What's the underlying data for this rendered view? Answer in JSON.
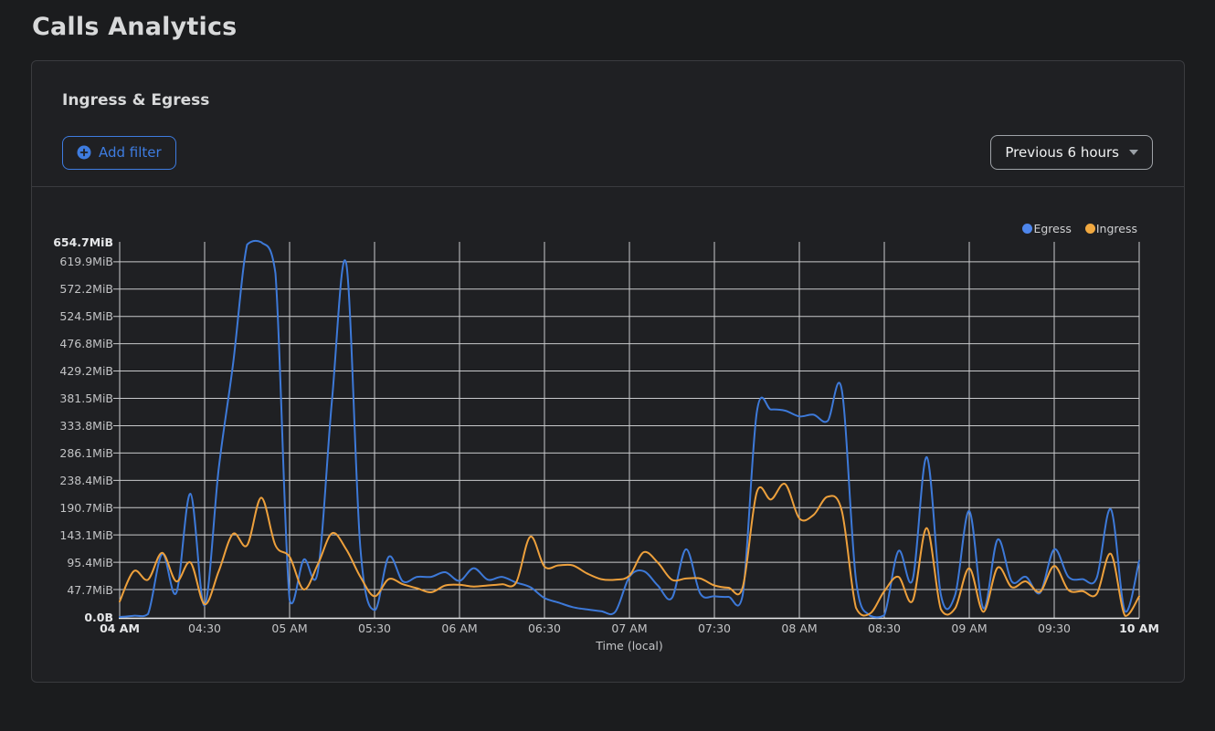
{
  "page": {
    "title": "Calls Analytics"
  },
  "panel": {
    "title": "Ingress & Egress",
    "add_filter_label": "Add filter",
    "time_range_label": "Previous 6 hours"
  },
  "colors": {
    "page_bg": "#1b1c1e",
    "panel_bg": "#1f2023",
    "panel_border": "#3a3b3f",
    "divider": "#3a3b3f",
    "text_primary": "#d8d9da",
    "tick_text": "#c3c4c6",
    "grid": "#c9cacc",
    "axis": "#ededee",
    "accent_blue": "#3e7ce0",
    "select_border": "#9fa3a8",
    "select_text": "#f0f1f2"
  },
  "chart_data": {
    "type": "line",
    "title": "Ingress & Egress",
    "xlabel": "Time (local)",
    "ylabel": "",
    "unit": "MiB",
    "grid": true,
    "legend_position": "top-right",
    "ylim": [
      0,
      654.7
    ],
    "x_range": [
      "04:00",
      "10:00"
    ],
    "sample_interval_minutes": 5,
    "x_ticks": [
      "04 AM",
      "04:30",
      "05 AM",
      "05:30",
      "06 AM",
      "06:30",
      "07 AM",
      "07:30",
      "08 AM",
      "08:30",
      "09 AM",
      "09:30",
      "10 AM"
    ],
    "y_tick_labels": [
      "654.7MiB",
      "619.9MiB",
      "572.2MiB",
      "524.5MiB",
      "476.8MiB",
      "429.2MiB",
      "381.5MiB",
      "333.8MiB",
      "286.1MiB",
      "238.4MiB",
      "190.7MiB",
      "143.1MiB",
      "95.4MiB",
      "47.7MiB",
      "0.0B"
    ],
    "y_tick_values": [
      654.7,
      619.9,
      572.2,
      524.5,
      476.8,
      429.2,
      381.5,
      333.8,
      286.1,
      238.4,
      190.7,
      143.1,
      95.4,
      47.7,
      0
    ],
    "series": [
      {
        "name": "Egress",
        "color": "#3d79d8",
        "dot_color": "#4e86ec",
        "values": [
          0,
          2,
          5,
          110,
          42,
          215,
          20,
          260,
          440,
          650,
          654,
          600,
          30,
          100,
          80,
          380,
          617,
          120,
          12,
          105,
          62,
          70,
          70,
          78,
          63,
          85,
          65,
          70,
          60,
          52,
          33,
          25,
          17,
          13,
          10,
          9,
          70,
          80,
          55,
          33,
          118,
          41,
          36,
          35,
          38,
          358,
          362,
          360,
          350,
          353,
          342,
          396,
          65,
          2,
          3,
          115,
          65,
          279,
          38,
          38,
          185,
          15,
          135,
          62,
          70,
          42,
          118,
          70,
          66,
          68,
          188,
          10,
          98
        ]
      },
      {
        "name": "Ingress",
        "color": "#eda03c",
        "dot_color": "#f0a840",
        "values": [
          27,
          80,
          65,
          112,
          62,
          95,
          22,
          80,
          145,
          125,
          208,
          125,
          105,
          48,
          92,
          146,
          118,
          70,
          36,
          66,
          57,
          50,
          43,
          55,
          56,
          53,
          55,
          57,
          60,
          140,
          88,
          90,
          90,
          76,
          66,
          65,
          72,
          113,
          95,
          65,
          67,
          67,
          55,
          51,
          52,
          218,
          205,
          232,
          172,
          178,
          210,
          185,
          16,
          6,
          45,
          70,
          28,
          155,
          13,
          15,
          85,
          9,
          86,
          52,
          62,
          44,
          89,
          47,
          45,
          40,
          110,
          2,
          36
        ]
      }
    ]
  }
}
